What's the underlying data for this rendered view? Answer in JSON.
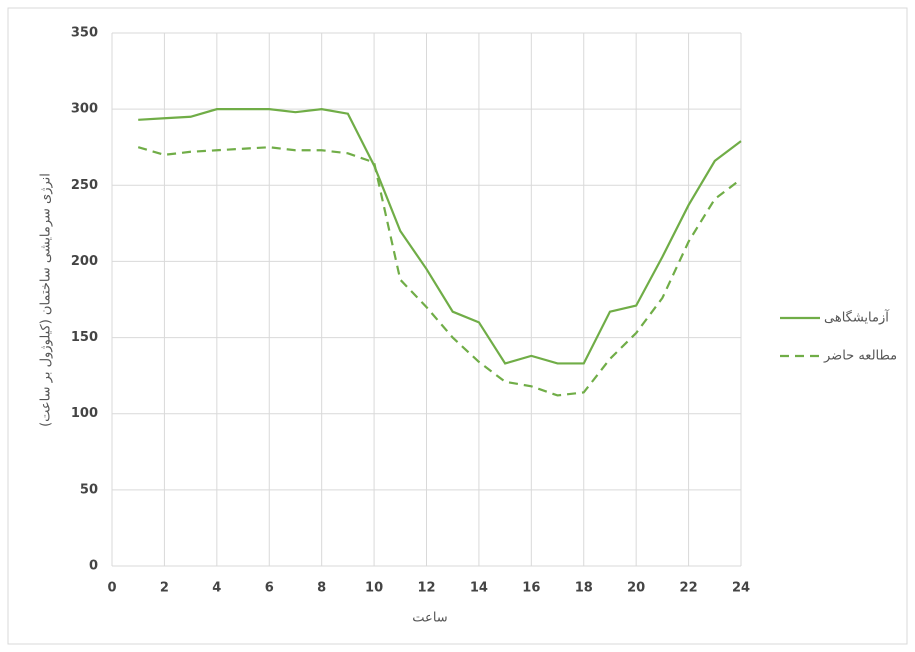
{
  "chart_data": {
    "type": "line",
    "x_label": "ساعت",
    "y_label": "انرژی سرمایشی ساختمان (کیلوژول بر ساعت)",
    "x": [
      1,
      2,
      3,
      4,
      5,
      6,
      7,
      8,
      9,
      10,
      11,
      12,
      13,
      14,
      15,
      16,
      17,
      18,
      19,
      20,
      21,
      22,
      23,
      24
    ],
    "series": [
      {
        "name": "آزمایشگاهی",
        "color": "#70ad47",
        "line_style": "solid",
        "values": [
          293,
          294,
          295,
          300,
          300,
          300,
          298,
          300,
          297,
          263,
          220,
          195,
          167,
          160,
          133,
          138,
          133,
          133,
          167,
          171,
          203,
          237,
          266,
          279
        ]
      },
      {
        "name": "مطالعه حاضر",
        "color": "#70ad47",
        "line_style": "dashed",
        "values": [
          275,
          270,
          272,
          273,
          274,
          275,
          273,
          273,
          271,
          265,
          188,
          170,
          150,
          134,
          121,
          118,
          112,
          114,
          136,
          153,
          176,
          213,
          241,
          254
        ]
      }
    ],
    "xlim": [
      0,
      24
    ],
    "xticks": [
      0,
      2,
      4,
      6,
      8,
      10,
      12,
      14,
      16,
      18,
      20,
      22,
      24
    ],
    "ylim": [
      0,
      350
    ],
    "yticks": [
      0,
      50,
      100,
      150,
      200,
      250,
      300,
      350
    ],
    "grid": true,
    "legend": "right"
  }
}
